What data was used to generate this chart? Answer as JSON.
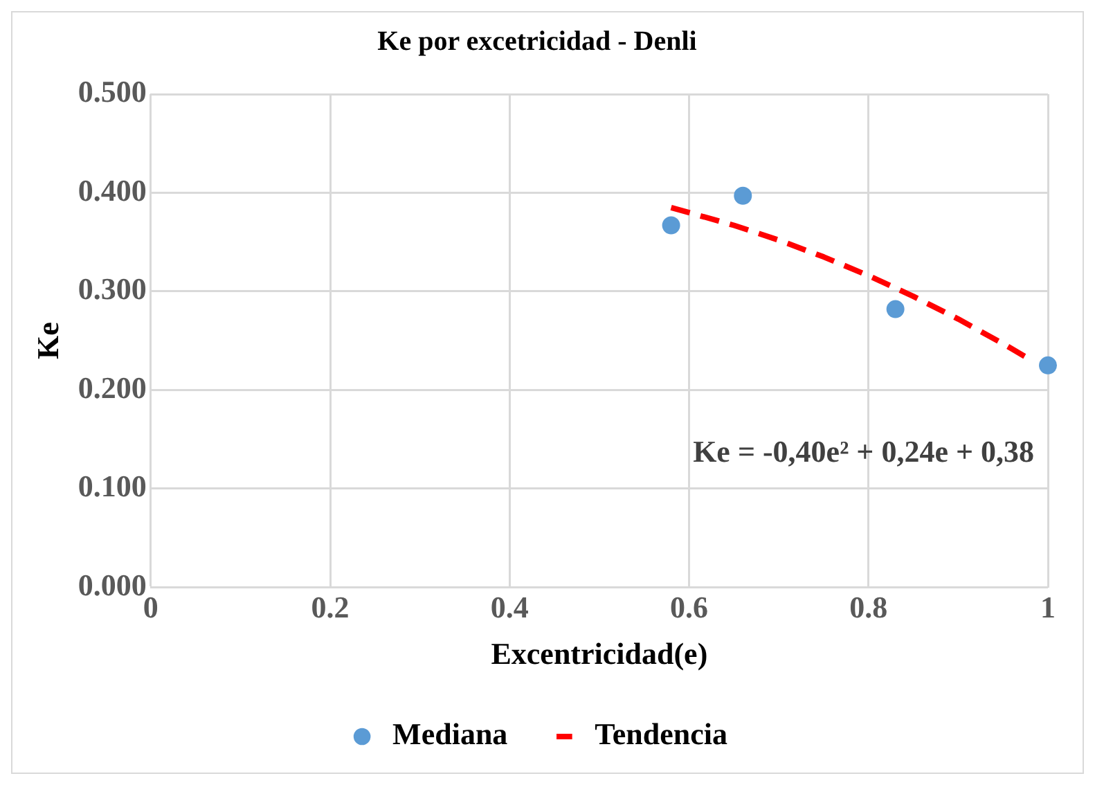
{
  "chart_data": {
    "type": "scatter",
    "title": "Ke por excetricidad - Denli",
    "xlabel": "Excentricidad(e)",
    "ylabel": "Ke",
    "xlim": [
      0,
      1
    ],
    "xticks": [
      0,
      0.2,
      0.4,
      0.6,
      0.8,
      1
    ],
    "ylim": [
      0,
      0.5
    ],
    "yticks": [
      {
        "value": 0,
        "label": "0.000"
      },
      {
        "value": 0.1,
        "label": "0.100"
      },
      {
        "value": 0.2,
        "label": "0.200"
      },
      {
        "value": 0.3,
        "label": "0.300"
      },
      {
        "value": 0.4,
        "label": "0.400"
      },
      {
        "value": 0.5,
        "label": "0.500"
      }
    ],
    "grid": true,
    "legend": "bottom",
    "series": [
      {
        "name": "Mediana",
        "marker": "circle",
        "color": "#5b9bd5",
        "x": [
          0.58,
          0.66,
          0.83,
          1.0
        ],
        "values": [
          0.367,
          0.397,
          0.282,
          0.225
        ]
      },
      {
        "name": "Tendencia",
        "type": "line",
        "color": "#ff0000",
        "line_style": "dashed",
        "x": [
          0.58,
          0.65,
          0.7,
          0.75,
          0.8,
          0.85,
          0.9,
          0.95,
          0.98
        ],
        "values": [
          0.385,
          0.367,
          0.352,
          0.335,
          0.316,
          0.295,
          0.272,
          0.247,
          0.231
        ]
      }
    ],
    "annotations": [
      "Ke = -0,40e² + 0,24e + 0,38"
    ]
  }
}
